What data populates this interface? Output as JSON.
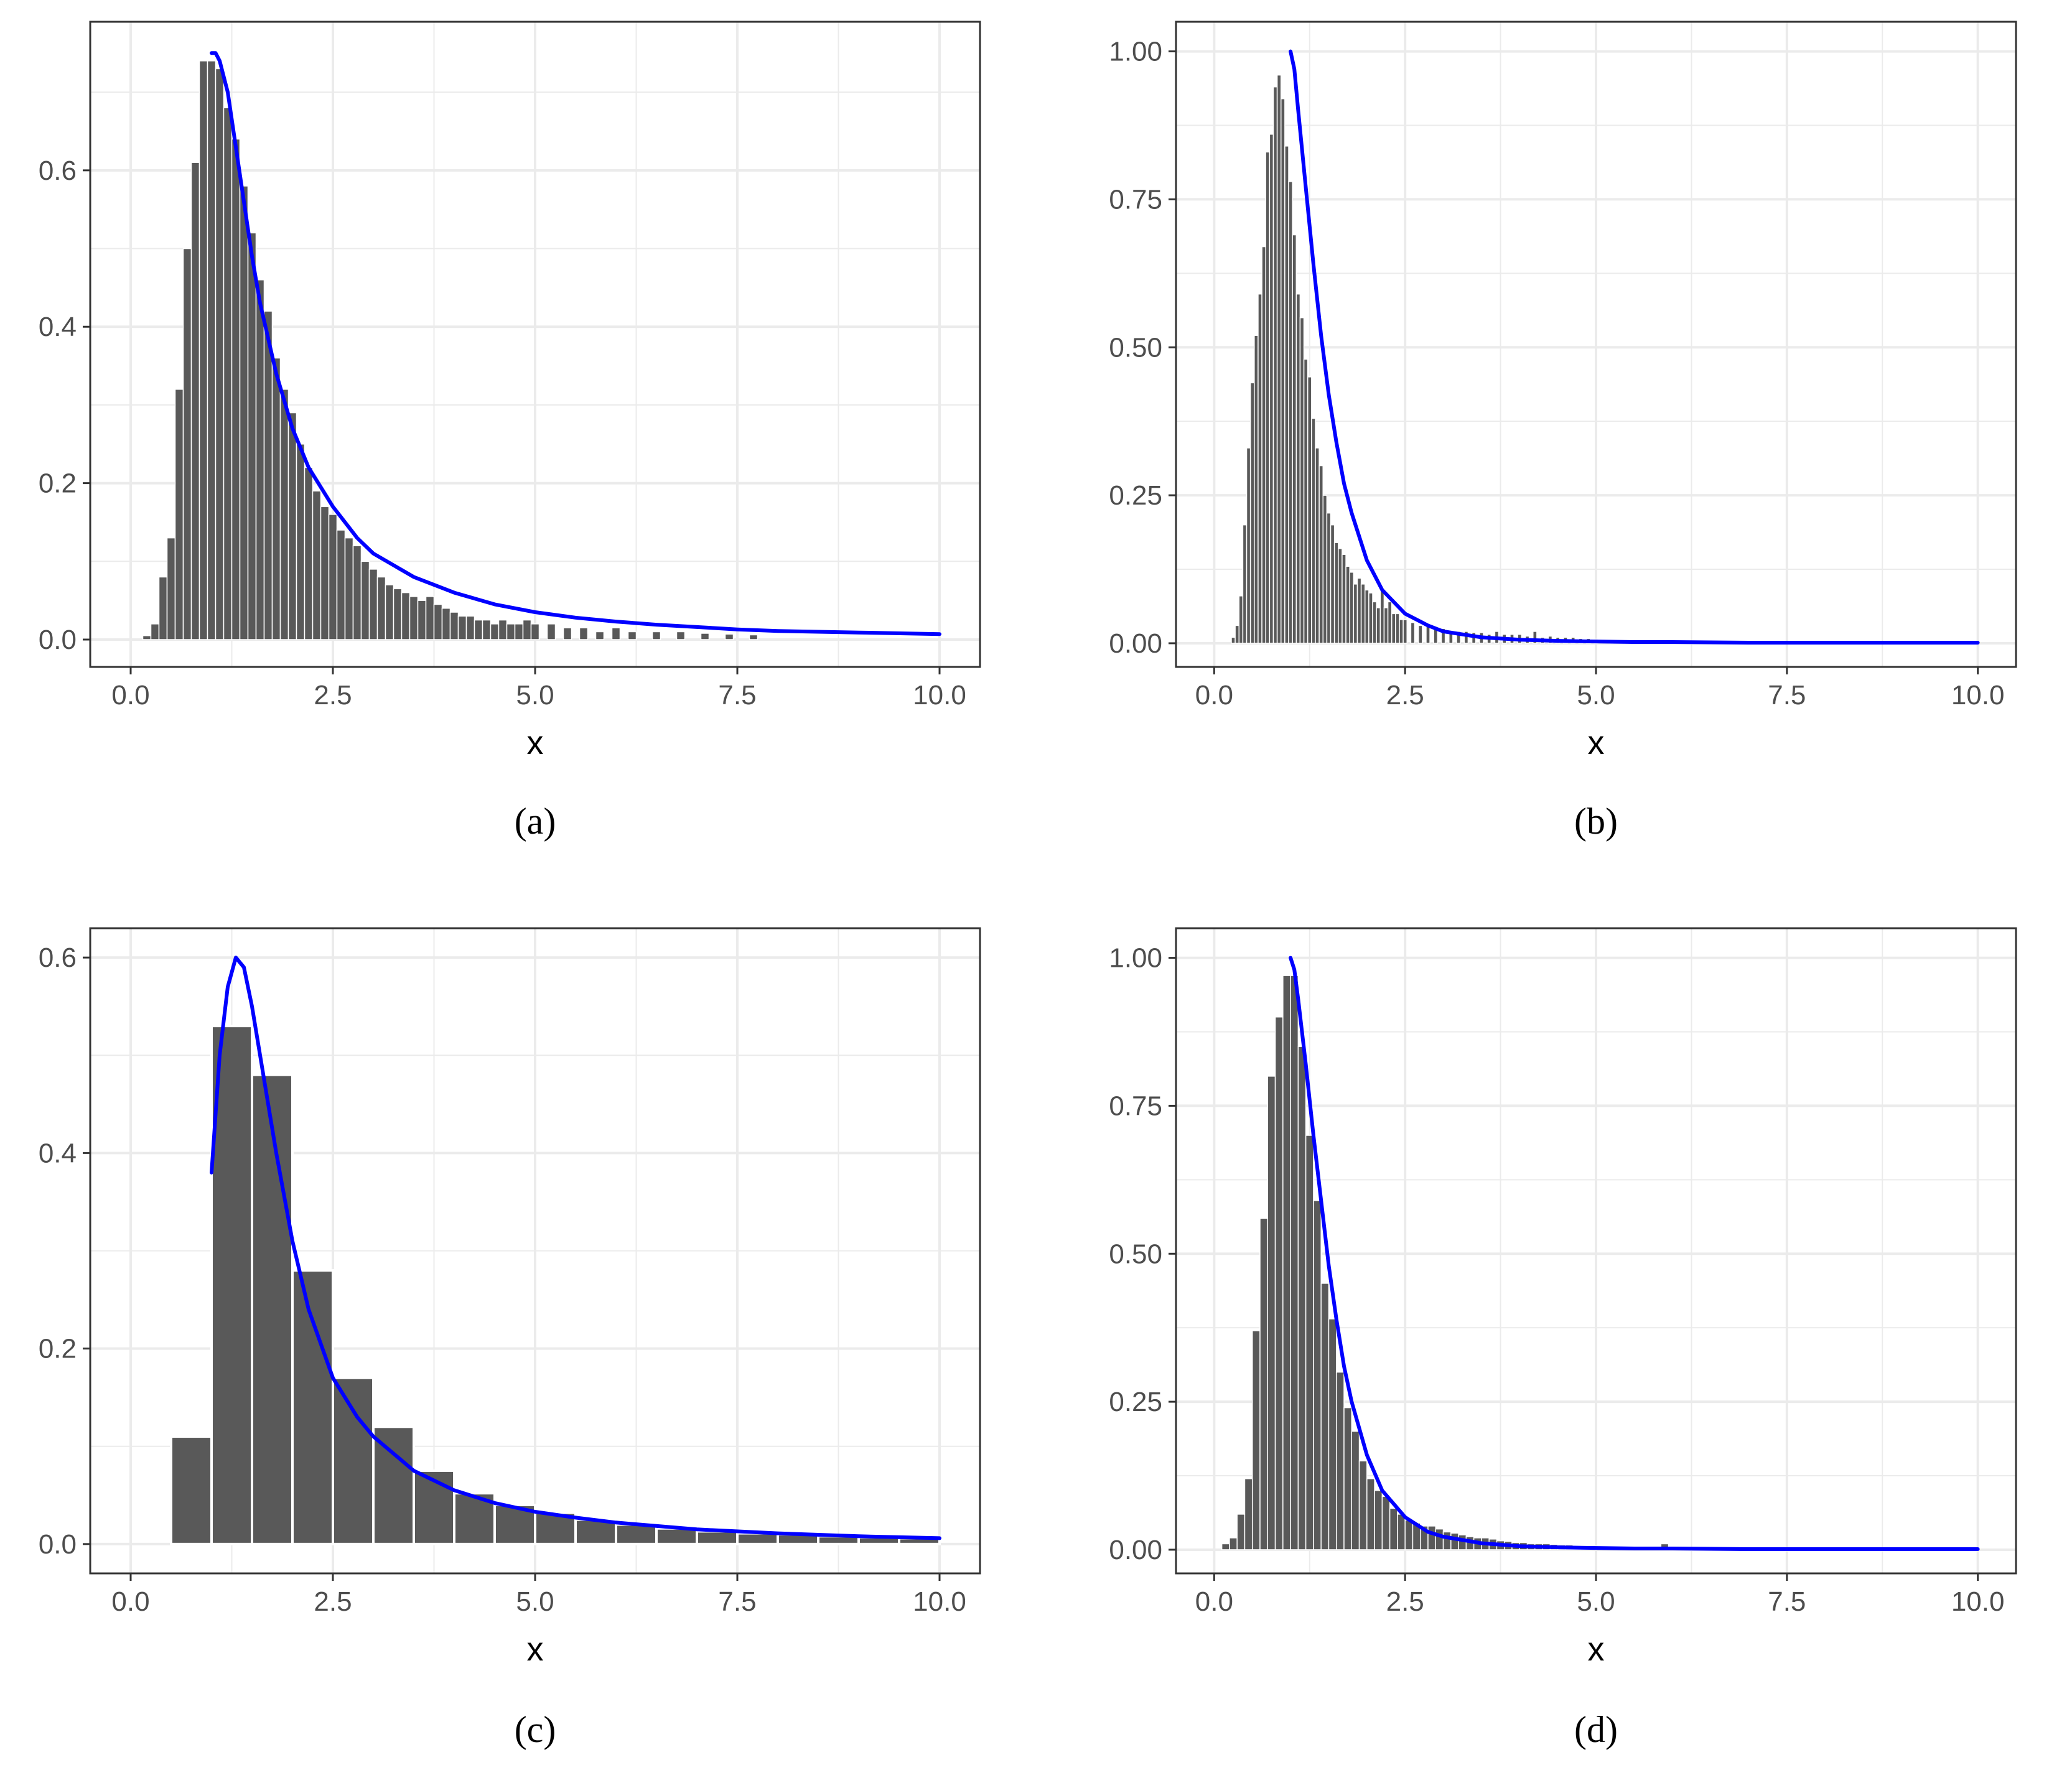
{
  "colors": {
    "bar": "#595959",
    "curve": "#0000ff",
    "grid": "#ebebeb",
    "panel_border": "#333333",
    "tick_label": "#4d4d4d"
  },
  "chart_data": [
    {
      "type": "bar",
      "caption": "(a)",
      "xlabel": "x",
      "ylabel": "",
      "xlim": [
        -0.5,
        10.5
      ],
      "ylim": [
        -0.035,
        0.79
      ],
      "xticks": [
        0,
        2.5,
        5,
        7.5,
        10
      ],
      "xtick_labels": [
        "0.0",
        "2.5",
        "5.0",
        "7.5",
        "10.0"
      ],
      "yticks": [
        0,
        0.2,
        0.4,
        0.6
      ],
      "ytick_labels": [
        "0.0",
        "0.2",
        "0.4",
        "0.6"
      ],
      "histogram": {
        "bin_width": 0.1,
        "x": [
          0.2,
          0.3,
          0.4,
          0.5,
          0.6,
          0.7,
          0.8,
          0.9,
          1.0,
          1.1,
          1.2,
          1.3,
          1.4,
          1.5,
          1.6,
          1.7,
          1.8,
          1.9,
          2.0,
          2.1,
          2.2,
          2.3,
          2.4,
          2.5,
          2.6,
          2.7,
          2.8,
          2.9,
          3.0,
          3.1,
          3.2,
          3.3,
          3.4,
          3.5,
          3.6,
          3.7,
          3.8,
          3.9,
          4.0,
          4.1,
          4.2,
          4.3,
          4.4,
          4.5,
          4.6,
          4.7,
          4.8,
          4.9,
          5.0,
          5.2,
          5.4,
          5.6,
          5.8,
          6.0,
          6.2,
          6.5,
          6.8,
          7.1,
          7.4,
          7.7
        ],
        "values": [
          0.005,
          0.02,
          0.08,
          0.13,
          0.32,
          0.5,
          0.61,
          0.74,
          0.74,
          0.73,
          0.68,
          0.64,
          0.58,
          0.52,
          0.46,
          0.42,
          0.36,
          0.32,
          0.29,
          0.25,
          0.22,
          0.19,
          0.17,
          0.16,
          0.14,
          0.13,
          0.12,
          0.1,
          0.09,
          0.08,
          0.07,
          0.065,
          0.06,
          0.055,
          0.05,
          0.055,
          0.045,
          0.04,
          0.035,
          0.03,
          0.03,
          0.025,
          0.025,
          0.02,
          0.025,
          0.02,
          0.02,
          0.025,
          0.02,
          0.02,
          0.015,
          0.015,
          0.01,
          0.015,
          0.01,
          0.01,
          0.01,
          0.008,
          0.007,
          0.006
        ]
      },
      "curve": {
        "x": [
          1.0,
          1.05,
          1.1,
          1.2,
          1.3,
          1.4,
          1.5,
          1.6,
          1.8,
          2.0,
          2.2,
          2.5,
          2.8,
          3.0,
          3.5,
          4.0,
          4.5,
          5.0,
          5.5,
          6.0,
          6.5,
          7.0,
          7.5,
          8.0,
          9.0,
          10.0
        ],
        "y": [
          0.75,
          0.75,
          0.74,
          0.7,
          0.63,
          0.56,
          0.49,
          0.43,
          0.34,
          0.27,
          0.22,
          0.17,
          0.13,
          0.11,
          0.08,
          0.06,
          0.045,
          0.035,
          0.028,
          0.023,
          0.019,
          0.016,
          0.013,
          0.011,
          0.009,
          0.007
        ]
      }
    },
    {
      "type": "bar",
      "caption": "(b)",
      "xlabel": "x",
      "ylabel": "",
      "xlim": [
        -0.5,
        10.5
      ],
      "ylim": [
        -0.04,
        1.05
      ],
      "xticks": [
        0,
        2.5,
        5,
        7.5,
        10
      ],
      "xtick_labels": [
        "0.0",
        "2.5",
        "5.0",
        "7.5",
        "10.0"
      ],
      "yticks": [
        0,
        0.25,
        0.5,
        0.75,
        1.0
      ],
      "ytick_labels": [
        "0.00",
        "0.25",
        "0.50",
        "0.75",
        "1.00"
      ],
      "histogram": {
        "bin_width": 0.05,
        "x": [
          0.25,
          0.3,
          0.35,
          0.4,
          0.45,
          0.5,
          0.55,
          0.6,
          0.65,
          0.7,
          0.75,
          0.8,
          0.85,
          0.9,
          0.95,
          1.0,
          1.05,
          1.1,
          1.15,
          1.2,
          1.25,
          1.3,
          1.35,
          1.4,
          1.45,
          1.5,
          1.55,
          1.6,
          1.65,
          1.7,
          1.75,
          1.8,
          1.85,
          1.9,
          1.95,
          2.0,
          2.05,
          2.1,
          2.15,
          2.2,
          2.25,
          2.3,
          2.35,
          2.4,
          2.45,
          2.5,
          2.6,
          2.7,
          2.8,
          2.9,
          3.0,
          3.1,
          3.2,
          3.3,
          3.4,
          3.5,
          3.6,
          3.7,
          3.8,
          3.9,
          4.0,
          4.1,
          4.2,
          4.3,
          4.4,
          4.5,
          4.6,
          4.7,
          4.8,
          4.9,
          5.0,
          5.2,
          5.4,
          5.6,
          6.0,
          6.4,
          7.2,
          7.6
        ],
        "values": [
          0.01,
          0.03,
          0.08,
          0.2,
          0.33,
          0.44,
          0.52,
          0.59,
          0.67,
          0.83,
          0.86,
          0.94,
          0.96,
          0.92,
          0.84,
          0.78,
          0.69,
          0.59,
          0.55,
          0.48,
          0.45,
          0.38,
          0.33,
          0.3,
          0.25,
          0.22,
          0.2,
          0.17,
          0.16,
          0.15,
          0.13,
          0.12,
          0.1,
          0.11,
          0.1,
          0.09,
          0.085,
          0.07,
          0.06,
          0.09,
          0.06,
          0.07,
          0.05,
          0.05,
          0.04,
          0.04,
          0.035,
          0.03,
          0.03,
          0.025,
          0.025,
          0.02,
          0.02,
          0.02,
          0.018,
          0.018,
          0.015,
          0.02,
          0.015,
          0.015,
          0.015,
          0.012,
          0.02,
          0.01,
          0.012,
          0.01,
          0.01,
          0.01,
          0.008,
          0.008,
          0.007,
          0.006,
          0.006,
          0.005,
          0.005,
          0.005,
          0.004,
          0.004
        ]
      },
      "curve": {
        "x": [
          1.0,
          1.05,
          1.1,
          1.2,
          1.3,
          1.4,
          1.5,
          1.6,
          1.7,
          1.8,
          2.0,
          2.2,
          2.5,
          2.8,
          3.0,
          3.5,
          4.0,
          4.5,
          5.0,
          5.5,
          6.0,
          7.0,
          8.0,
          9.0,
          10.0
        ],
        "y": [
          1.0,
          0.97,
          0.9,
          0.77,
          0.64,
          0.52,
          0.42,
          0.34,
          0.27,
          0.22,
          0.14,
          0.09,
          0.05,
          0.03,
          0.02,
          0.01,
          0.006,
          0.004,
          0.003,
          0.002,
          0.002,
          0.001,
          0.001,
          0.001,
          0.001
        ]
      }
    },
    {
      "type": "bar",
      "caption": "(c)",
      "xlabel": "x",
      "ylabel": "",
      "xlim": [
        -0.5,
        10.5
      ],
      "ylim": [
        -0.03,
        0.63
      ],
      "xticks": [
        0,
        2.5,
        5,
        7.5,
        10
      ],
      "xtick_labels": [
        "0.0",
        "2.5",
        "5.0",
        "7.5",
        "10.0"
      ],
      "yticks": [
        0,
        0.2,
        0.4,
        0.6
      ],
      "ytick_labels": [
        "0.0",
        "0.2",
        "0.4",
        "0.6"
      ],
      "histogram": {
        "bin_width": 0.5,
        "x": [
          0.75,
          1.25,
          1.75,
          2.25,
          2.75,
          3.25,
          3.75,
          4.25,
          4.75,
          5.25,
          5.75,
          6.25,
          6.75,
          7.25,
          7.75,
          8.25,
          8.75,
          9.25,
          9.75
        ],
        "values": [
          0.11,
          0.53,
          0.48,
          0.28,
          0.17,
          0.12,
          0.075,
          0.052,
          0.04,
          0.032,
          0.025,
          0.02,
          0.016,
          0.013,
          0.011,
          0.01,
          0.008,
          0.007,
          0.006
        ]
      },
      "curve": {
        "x": [
          1.0,
          1.05,
          1.1,
          1.2,
          1.3,
          1.4,
          1.5,
          1.6,
          1.8,
          2.0,
          2.2,
          2.5,
          2.8,
          3.0,
          3.5,
          4.0,
          4.5,
          5.0,
          5.5,
          6.0,
          7.0,
          8.0,
          9.0,
          10.0
        ],
        "y": [
          0.38,
          0.44,
          0.5,
          0.57,
          0.6,
          0.59,
          0.55,
          0.5,
          0.4,
          0.31,
          0.24,
          0.17,
          0.13,
          0.11,
          0.075,
          0.055,
          0.042,
          0.033,
          0.027,
          0.022,
          0.015,
          0.011,
          0.008,
          0.006
        ]
      }
    },
    {
      "type": "bar",
      "caption": "(d)",
      "xlabel": "x",
      "ylabel": "",
      "xlim": [
        -0.5,
        10.5
      ],
      "ylim": [
        -0.04,
        1.05
      ],
      "xticks": [
        0,
        2.5,
        5,
        7.5,
        10
      ],
      "xtick_labels": [
        "0.0",
        "2.5",
        "5.0",
        "7.5",
        "10.0"
      ],
      "yticks": [
        0,
        0.25,
        0.5,
        0.75,
        1.0
      ],
      "ytick_labels": [
        "0.00",
        "0.25",
        "0.50",
        "0.75",
        "1.00"
      ],
      "histogram": {
        "bin_width": 0.1,
        "x": [
          0.15,
          0.25,
          0.35,
          0.45,
          0.55,
          0.65,
          0.75,
          0.85,
          0.95,
          1.05,
          1.15,
          1.25,
          1.35,
          1.45,
          1.55,
          1.65,
          1.75,
          1.85,
          1.95,
          2.05,
          2.15,
          2.25,
          2.35,
          2.45,
          2.55,
          2.65,
          2.75,
          2.85,
          2.95,
          3.05,
          3.15,
          3.25,
          3.35,
          3.45,
          3.55,
          3.65,
          3.75,
          3.85,
          3.95,
          4.05,
          4.15,
          4.25,
          4.35,
          4.45,
          4.55,
          4.65,
          4.75,
          4.85,
          4.95,
          5.4,
          5.9
        ],
        "values": [
          0.01,
          0.02,
          0.06,
          0.12,
          0.37,
          0.56,
          0.8,
          0.9,
          0.97,
          0.97,
          0.85,
          0.7,
          0.59,
          0.45,
          0.39,
          0.3,
          0.24,
          0.2,
          0.15,
          0.12,
          0.1,
          0.09,
          0.07,
          0.06,
          0.05,
          0.045,
          0.04,
          0.04,
          0.035,
          0.03,
          0.028,
          0.025,
          0.022,
          0.02,
          0.02,
          0.018,
          0.015,
          0.014,
          0.012,
          0.012,
          0.01,
          0.01,
          0.01,
          0.009,
          0.008,
          0.008,
          0.007,
          0.007,
          0.006,
          0.005,
          0.01
        ]
      },
      "curve": {
        "x": [
          1.0,
          1.05,
          1.1,
          1.2,
          1.3,
          1.4,
          1.5,
          1.6,
          1.7,
          1.8,
          2.0,
          2.2,
          2.5,
          2.8,
          3.0,
          3.5,
          4.0,
          4.5,
          5.0,
          5.5,
          6.0,
          7.0,
          8.0,
          9.0,
          10.0
        ],
        "y": [
          1.0,
          0.98,
          0.93,
          0.82,
          0.7,
          0.59,
          0.48,
          0.39,
          0.31,
          0.25,
          0.16,
          0.1,
          0.055,
          0.03,
          0.022,
          0.011,
          0.006,
          0.004,
          0.003,
          0.002,
          0.002,
          0.001,
          0.001,
          0.001,
          0.001
        ]
      }
    }
  ]
}
